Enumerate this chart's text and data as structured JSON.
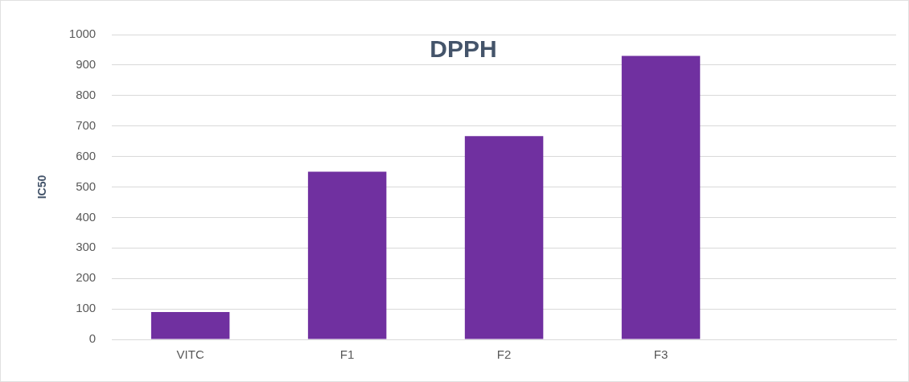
{
  "chart_data": {
    "type": "bar",
    "title": "DPPH",
    "ylabel": "IC50",
    "categories": [
      "VITC",
      "F1",
      "F2",
      "F3",
      null
    ],
    "values": [
      90,
      550,
      667,
      930,
      null
    ],
    "color": "#7030a0",
    "ylim": [
      0,
      1000
    ],
    "yticks": [
      0,
      100,
      200,
      300,
      400,
      500,
      600,
      700,
      800,
      900,
      1000
    ],
    "grid": "y",
    "legend": false
  }
}
